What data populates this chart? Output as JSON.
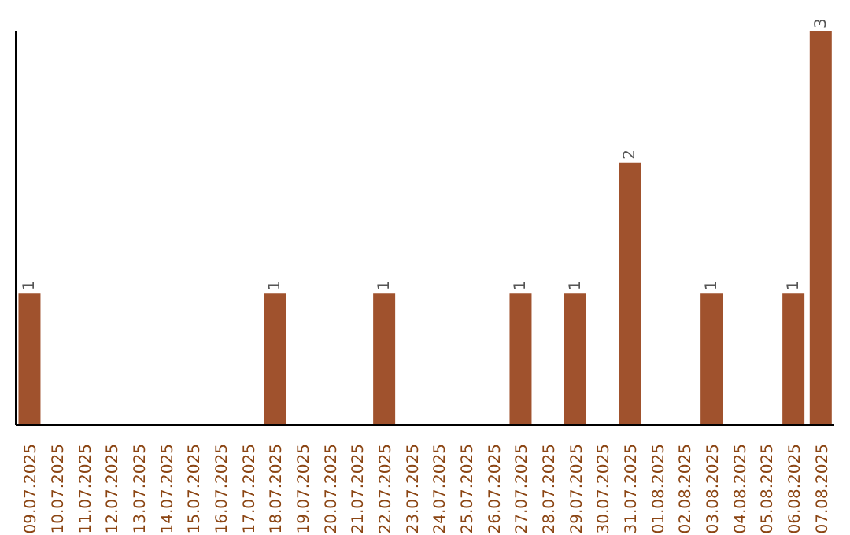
{
  "chart_data": {
    "type": "bar",
    "categories": [
      "09.07.2025",
      "10.07.2025",
      "11.07.2025",
      "12.07.2025",
      "13.07.2025",
      "14.07.2025",
      "15.07.2025",
      "16.07.2025",
      "17.07.2025",
      "18.07.2025",
      "19.07.2025",
      "20.07.2025",
      "21.07.2025",
      "22.07.2025",
      "23.07.2025",
      "24.07.2025",
      "25.07.2025",
      "26.07.2025",
      "27.07.2025",
      "28.07.2025",
      "29.07.2025",
      "30.07.2025",
      "31.07.2025",
      "01.08.2025",
      "02.08.2025",
      "03.08.2025",
      "04.08.2025",
      "05.08.2025",
      "06.08.2025",
      "07.08.2025"
    ],
    "values": [
      1,
      0,
      0,
      0,
      0,
      0,
      0,
      0,
      0,
      1,
      0,
      0,
      0,
      1,
      0,
      0,
      0,
      0,
      1,
      0,
      1,
      0,
      2,
      0,
      0,
      1,
      0,
      0,
      1,
      3
    ],
    "value_labels": [
      "1",
      null,
      null,
      null,
      null,
      null,
      null,
      null,
      null,
      "1",
      null,
      null,
      null,
      "1",
      null,
      null,
      null,
      null,
      "1",
      null,
      "1",
      null,
      "2",
      null,
      null,
      "1",
      null,
      null,
      "1",
      "3"
    ],
    "color": "#a0522d"
  }
}
